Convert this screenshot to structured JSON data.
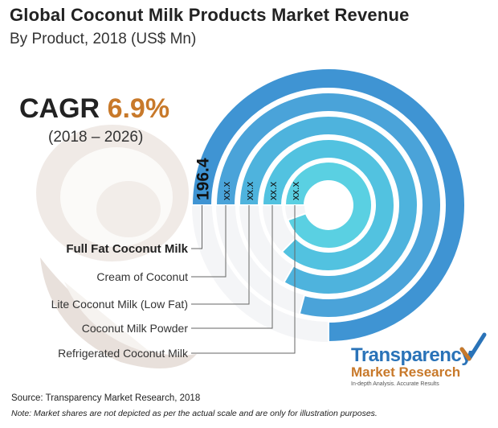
{
  "header": {
    "title": "Global Coconut Milk Products Market Revenue",
    "subtitle": "By Product, 2018 (US$ Mn)"
  },
  "cagr": {
    "label": "CAGR",
    "value": "6.9%",
    "period": "(2018 – 2026)"
  },
  "chart_data": {
    "type": "radial-bar",
    "title": "Global Coconut Milk Products Market Revenue",
    "subtitle": "By Product, 2018 (US$ Mn)",
    "categories": [
      "Full Fat Coconut Milk",
      "Cream of Coconut",
      "Lite Coconut Milk (Low Fat)",
      "Coconut Milk Powder",
      "Refrigerated Coconut Milk"
    ],
    "value_labels": [
      "196.4",
      "xx.x",
      "xx.x",
      "xx.x",
      "xx.x"
    ],
    "values": [
      196.4,
      null,
      null,
      null,
      null
    ],
    "colors": [
      "#3f94d3",
      "#4aa3d9",
      "#4eb3dd",
      "#52c2e0",
      "#5ad0e2"
    ]
  },
  "footer": {
    "source": "Source: Transparency Market Research, 2018",
    "note": "Note: Market shares are not depicted as per the actual scale and are only for illustration purposes."
  },
  "brand": {
    "name_line1": "Transparency",
    "name_line2": "Market Research",
    "tagline": "In-depth Analysis. Accurate Results"
  }
}
